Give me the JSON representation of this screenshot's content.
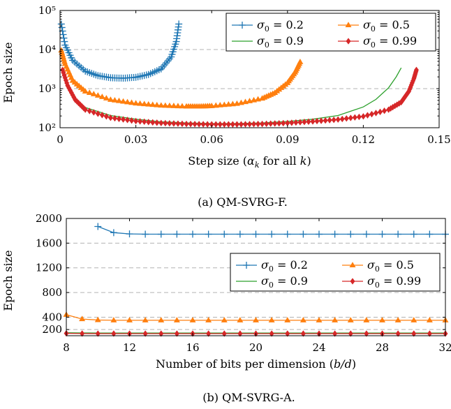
{
  "chart_data": [
    {
      "id": "a",
      "type": "line",
      "caption": "(a) QM-SVRG-F.",
      "xlabel": "Step size (αk for all k)",
      "ylabel": "Epoch size",
      "xscale": "linear",
      "yscale": "log",
      "xlim": [
        0,
        0.15
      ],
      "ylim": [
        100,
        100000
      ],
      "xticks": [
        0,
        0.03,
        0.06,
        0.09,
        0.12,
        0.15
      ],
      "xtick_labels": [
        "0",
        "0.03",
        "0.06",
        "0.09",
        "0.12",
        "0.15"
      ],
      "yticks": [
        100,
        1000,
        10000,
        100000
      ],
      "ytick_labels": [
        "10²",
        "10³",
        "10⁴",
        "10⁵"
      ],
      "grid": "horizontal dashed",
      "legend_position": "top-right",
      "legend_columns": 2,
      "series": [
        {
          "name": "σ0 = 0.2",
          "color": "#1f77b4",
          "marker": "plus",
          "x": [
            0.0005,
            0.002,
            0.005,
            0.01,
            0.015,
            0.02,
            0.025,
            0.03,
            0.035,
            0.04,
            0.044,
            0.046,
            0.047
          ],
          "y": [
            45000,
            13000,
            5300,
            2800,
            2150,
            1900,
            1850,
            1950,
            2300,
            3200,
            6500,
            16000,
            45000
          ]
        },
        {
          "name": "σ0 = 0.5",
          "color": "#ff7f0e",
          "marker": "triangle",
          "x": [
            0.0005,
            0.002,
            0.005,
            0.01,
            0.02,
            0.03,
            0.04,
            0.05,
            0.055,
            0.06,
            0.07,
            0.08,
            0.085,
            0.09,
            0.093,
            0.095
          ],
          "y": [
            9500,
            4300,
            1600,
            850,
            520,
            420,
            370,
            350,
            350,
            360,
            410,
            560,
            780,
            1400,
            2600,
            4800
          ]
        },
        {
          "name": "σ0 = 0.9",
          "color": "#2ca02c",
          "marker": "none",
          "x": [
            0.001,
            0.003,
            0.006,
            0.01,
            0.02,
            0.03,
            0.04,
            0.05,
            0.06,
            0.07,
            0.08,
            0.09,
            0.1,
            0.11,
            0.12,
            0.125,
            0.13,
            0.133,
            0.135
          ],
          "y": [
            2900,
            1250,
            580,
            330,
            205,
            165,
            142,
            133,
            128,
            128,
            133,
            145,
            165,
            205,
            340,
            530,
            1050,
            2000,
            3400
          ]
        },
        {
          "name": "σ0 = 0.99",
          "color": "#d62728",
          "marker": "diamond",
          "x": [
            0.001,
            0.003,
            0.006,
            0.01,
            0.02,
            0.03,
            0.04,
            0.05,
            0.06,
            0.07,
            0.08,
            0.09,
            0.1,
            0.11,
            0.12,
            0.13,
            0.135,
            0.138,
            0.14,
            0.141
          ],
          "y": [
            3000,
            1200,
            520,
            290,
            180,
            148,
            132,
            125,
            122,
            122,
            125,
            132,
            145,
            162,
            195,
            290,
            450,
            850,
            1800,
            3000
          ]
        }
      ]
    },
    {
      "id": "b",
      "type": "line",
      "caption": "(b) QM-SVRG-A.",
      "xlabel": "Number of bits per dimension (b/d)",
      "ylabel": "Epoch size",
      "xscale": "linear",
      "yscale": "linear",
      "xlim": [
        8,
        32
      ],
      "ylim": [
        100,
        2000
      ],
      "xticks": [
        8,
        12,
        16,
        20,
        24,
        28,
        32
      ],
      "yticks": [
        200,
        400,
        800,
        1200,
        1600,
        2000
      ],
      "grid": "horizontal dashed",
      "legend_position": "center-right",
      "legend_columns": 2,
      "series": [
        {
          "name": "σ0 = 0.2",
          "color": "#1f77b4",
          "marker": "plus",
          "x": [
            10,
            11,
            12,
            13,
            14,
            15,
            16,
            17,
            18,
            19,
            20,
            21,
            22,
            23,
            24,
            25,
            26,
            27,
            28,
            29,
            30,
            31,
            32
          ],
          "y": [
            1870,
            1770,
            1750,
            1745,
            1745,
            1745,
            1745,
            1745,
            1745,
            1745,
            1745,
            1745,
            1745,
            1745,
            1745,
            1745,
            1745,
            1745,
            1745,
            1745,
            1745,
            1745,
            1745
          ]
        },
        {
          "name": "σ0 = 0.5",
          "color": "#ff7f0e",
          "marker": "triangle",
          "x": [
            8,
            9,
            10,
            11,
            12,
            13,
            14,
            15,
            16,
            17,
            18,
            19,
            20,
            21,
            22,
            23,
            24,
            25,
            26,
            27,
            28,
            29,
            30,
            31,
            32
          ],
          "y": [
            440,
            370,
            355,
            350,
            350,
            350,
            350,
            350,
            350,
            350,
            350,
            350,
            350,
            350,
            350,
            350,
            350,
            350,
            350,
            350,
            350,
            350,
            350,
            350,
            350
          ]
        },
        {
          "name": "σ0 = 0.9",
          "color": "#2ca02c",
          "marker": "none",
          "x": [
            8,
            9,
            10,
            11,
            12,
            13,
            14,
            15,
            16,
            17,
            18,
            19,
            20,
            21,
            22,
            23,
            24,
            25,
            26,
            27,
            28,
            29,
            30,
            31,
            32
          ],
          "y": [
            148,
            145,
            144,
            144,
            144,
            144,
            144,
            144,
            144,
            144,
            144,
            144,
            144,
            144,
            144,
            144,
            144,
            144,
            144,
            144,
            144,
            144,
            144,
            144,
            144
          ]
        },
        {
          "name": "σ0 = 0.99",
          "color": "#d62728",
          "marker": "diamond",
          "x": [
            8,
            9,
            10,
            11,
            12,
            13,
            14,
            15,
            16,
            17,
            18,
            19,
            20,
            21,
            22,
            23,
            24,
            25,
            26,
            27,
            28,
            29,
            30,
            31,
            32
          ],
          "y": [
            138,
            135,
            134,
            134,
            134,
            134,
            134,
            134,
            134,
            134,
            134,
            134,
            134,
            134,
            134,
            134,
            134,
            134,
            134,
            134,
            134,
            134,
            134,
            134,
            134
          ]
        }
      ]
    }
  ]
}
